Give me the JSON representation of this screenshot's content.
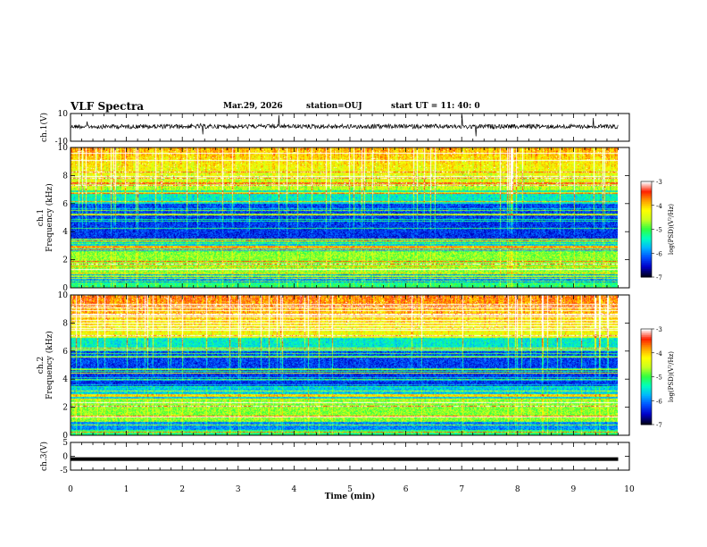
{
  "header": {
    "title": "VLF Spectra",
    "date": "Mar.29, 2026",
    "station": "station=OUJ",
    "start_ut": "start  UT  =   11: 40: 0"
  },
  "chart_data": [
    {
      "type": "line",
      "panel": "ch1-waveform",
      "ylabel": "ch.1(V)",
      "ylim": [
        -10,
        10
      ],
      "y_ticks": [
        "10",
        "-10"
      ],
      "xlim": [
        0,
        10
      ],
      "series": [
        {
          "values_description_level": 0,
          "color": "#000000"
        }
      ]
    },
    {
      "type": "heatmap",
      "panel": "ch1-spectrogram",
      "ylabel_line1": "ch.1",
      "ylabel_line2": "Frequency (kHz)",
      "ylim": [
        0,
        10
      ],
      "y_ticks": [
        "0",
        "2",
        "4",
        "6",
        "8",
        "10"
      ],
      "xlim": [
        0,
        10
      ],
      "data_end_min": 9.8,
      "colorbar": {
        "label": "log(PSD)(V²/Hz)",
        "range": [
          -7,
          -3
        ],
        "ticks": [
          "-3",
          "-4",
          "-5",
          "-6",
          "-7"
        ]
      }
    },
    {
      "type": "heatmap",
      "panel": "ch2-spectrogram",
      "ylabel_line1": "ch.2",
      "ylabel_line2": "Frequency (kHz)",
      "ylim": [
        0,
        10
      ],
      "y_ticks": [
        "0",
        "2",
        "4",
        "6",
        "8",
        "10"
      ],
      "xlim": [
        0,
        10
      ],
      "data_end_min": 9.8,
      "colorbar": {
        "label": "log(PSD)(V²/Hz)",
        "range": [
          -7,
          -3
        ],
        "ticks": [
          "-3",
          "-4",
          "-5",
          "-6",
          "-7"
        ]
      }
    },
    {
      "type": "line",
      "panel": "ch3-waveform",
      "ylabel": "ch.3(V)",
      "ylim": [
        -5,
        5
      ],
      "y_ticks": [
        "5",
        "0",
        "-5"
      ],
      "xlim": [
        0,
        10
      ],
      "series": [
        {
          "constant_value": -1,
          "color": "#000000"
        }
      ]
    }
  ],
  "x_axis": {
    "label": "Time  (min)",
    "ticks": [
      "0",
      "1",
      "2",
      "3",
      "4",
      "5",
      "6",
      "7",
      "8",
      "9",
      "10"
    ]
  },
  "colors": {
    "background": "#ffffff",
    "axes": "#000000",
    "colormap": [
      "#000020",
      "#0000c8",
      "#0050ff",
      "#00b4ff",
      "#00ffc0",
      "#30ff40",
      "#c8ff20",
      "#ffff00",
      "#ffa000",
      "#ff2000",
      "#ffffff"
    ]
  }
}
